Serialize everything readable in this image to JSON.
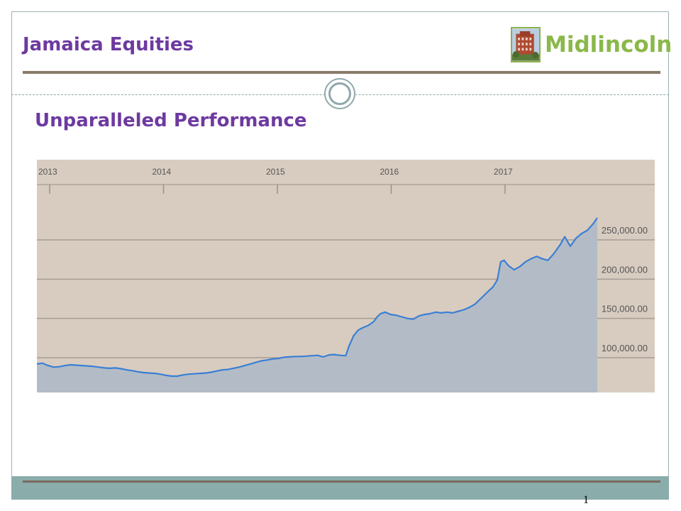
{
  "header": {
    "title": "Jamaica Equities",
    "logo_text": "Midlincoln",
    "logo_icon": "building-photo-icon"
  },
  "section": {
    "subtitle": "Unparalleled Performance"
  },
  "footer": {
    "page_number": "1"
  },
  "colors": {
    "title": "#6d3aa0",
    "logo_green": "#8ab84a",
    "chart_bg": "#d8ccc0",
    "line": "#3a7fd5",
    "area": "#b3bcc6",
    "footer_band": "#8aacab"
  },
  "chart_data": {
    "type": "area",
    "title": "",
    "xlabel": "",
    "ylabel": "",
    "x_ticks": [
      "2013",
      "2014",
      "2015",
      "2016",
      "2017"
    ],
    "y_ticks": [
      "100,000.00",
      "150,000.00",
      "200,000.00",
      "250,000.00"
    ],
    "y_tick_values": [
      100000,
      150000,
      200000,
      250000
    ],
    "ylim": [
      58000,
      288000
    ],
    "xlim": [
      2013.0,
      2017.99
    ],
    "y_axis_position": "right",
    "grid": true,
    "series": [
      {
        "x": [
          2013.0,
          2013.05,
          2013.1,
          2013.15,
          2013.2,
          2013.25,
          2013.3,
          2013.35,
          2013.4,
          2013.45,
          2013.5,
          2013.55,
          2013.6,
          2013.65,
          2013.7,
          2013.75,
          2013.8,
          2013.85,
          2013.9,
          2013.95,
          2014.0,
          2014.05,
          2014.1,
          2014.15,
          2014.2,
          2014.25,
          2014.3,
          2014.35,
          2014.4,
          2014.45,
          2014.5,
          2014.55,
          2014.6,
          2014.65,
          2014.7,
          2014.75,
          2014.8,
          2014.85,
          2014.9,
          2014.95,
          2015.0,
          2015.05,
          2015.1,
          2015.15,
          2015.2,
          2015.25,
          2015.3,
          2015.35,
          2015.4,
          2015.45,
          2015.5,
          2015.55,
          2015.6,
          2015.65,
          2015.7,
          2015.75,
          2015.78,
          2015.82,
          2015.86,
          2015.9,
          2015.95,
          2016.0,
          2016.03,
          2016.06,
          2016.1,
          2016.15,
          2016.2,
          2016.25,
          2016.3,
          2016.35,
          2016.4,
          2016.45,
          2016.5,
          2016.55,
          2016.6,
          2016.65,
          2016.7,
          2016.75,
          2016.8,
          2016.85,
          2016.9,
          2016.95,
          2017.0,
          2017.03,
          2017.06,
          2017.1,
          2017.13,
          2017.16,
          2017.2,
          2017.25,
          2017.3,
          2017.35,
          2017.4,
          2017.45,
          2017.5,
          2017.55,
          2017.6,
          2017.63,
          2017.66,
          2017.7,
          2017.75,
          2017.8,
          2017.85,
          2017.9,
          2017.95,
          2017.99
        ],
        "y": [
          92000,
          93000,
          90000,
          88000,
          88500,
          90000,
          91000,
          90500,
          90000,
          89500,
          89000,
          88000,
          87000,
          86500,
          87000,
          86000,
          84500,
          83500,
          82000,
          81000,
          80500,
          80000,
          79000,
          77500,
          76500,
          76500,
          78000,
          79000,
          79500,
          80000,
          80500,
          81500,
          83000,
          84500,
          85000,
          86500,
          88000,
          90000,
          92000,
          94000,
          96000,
          97000,
          98500,
          99000,
          100500,
          101000,
          101500,
          101500,
          102000,
          102500,
          103000,
          101000,
          103500,
          104000,
          103000,
          102500,
          115000,
          128000,
          135000,
          138000,
          141000,
          146000,
          152000,
          156000,
          158000,
          155000,
          154000,
          152000,
          150000,
          149000,
          153000,
          155000,
          156000,
          158000,
          157000,
          158000,
          157000,
          159000,
          161000,
          164000,
          168000,
          175000,
          182000,
          186000,
          190000,
          199000,
          222000,
          224000,
          217000,
          212000,
          216000,
          222000,
          226000,
          229000,
          226000,
          224000,
          232000,
          238000,
          244000,
          254000,
          242000,
          252000,
          258000,
          262000,
          270000,
          278000
        ]
      }
    ]
  }
}
